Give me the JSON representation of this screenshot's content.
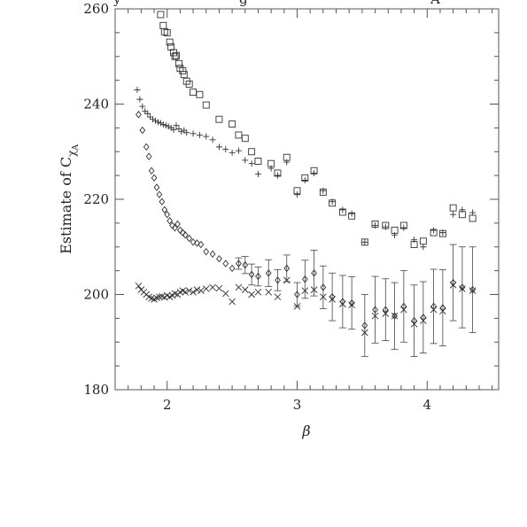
{
  "chart_data": {
    "type": "scatter",
    "title": "",
    "xlabel": "β",
    "ylabel_main": "Estimate of C",
    "ylabel_sub": "χ",
    "ylabel_subsub": "A",
    "xlim": [
      1.6,
      4.55
    ],
    "ylim": [
      180,
      260
    ],
    "x_ticks": [
      2,
      3,
      4
    ],
    "x_tick_labels": [
      "2",
      "3",
      "4"
    ],
    "y_ticks": [
      180,
      200,
      220,
      240,
      260
    ],
    "y_tick_labels": [
      "180",
      "200",
      "220",
      "240",
      "260"
    ],
    "grid": false,
    "series": [
      {
        "marker": "square",
        "points": [
          {
            "x": 1.95,
            "y": 258.8
          },
          {
            "x": 1.97,
            "y": 256.5
          },
          {
            "x": 1.98,
            "y": 255.2
          },
          {
            "x": 2.0,
            "y": 255.0
          },
          {
            "x": 2.02,
            "y": 253.0
          },
          {
            "x": 2.03,
            "y": 252.0
          },
          {
            "x": 2.05,
            "y": 250.8
          },
          {
            "x": 2.06,
            "y": 250.0
          },
          {
            "x": 2.07,
            "y": 250.2
          },
          {
            "x": 2.09,
            "y": 248.5
          },
          {
            "x": 2.1,
            "y": 247.5
          },
          {
            "x": 2.12,
            "y": 247.0
          },
          {
            "x": 2.13,
            "y": 246.2
          },
          {
            "x": 2.15,
            "y": 244.8
          },
          {
            "x": 2.17,
            "y": 244.2
          },
          {
            "x": 2.2,
            "y": 242.5
          },
          {
            "x": 2.25,
            "y": 242.0
          },
          {
            "x": 2.3,
            "y": 239.8
          },
          {
            "x": 2.4,
            "y": 236.8
          },
          {
            "x": 2.5,
            "y": 235.8
          },
          {
            "x": 2.55,
            "y": 233.5
          },
          {
            "x": 2.6,
            "y": 232.8
          },
          {
            "x": 2.65,
            "y": 230.0
          },
          {
            "x": 2.7,
            "y": 228.0
          },
          {
            "x": 2.8,
            "y": 227.5
          },
          {
            "x": 2.85,
            "y": 225.5
          },
          {
            "x": 2.92,
            "y": 228.8
          },
          {
            "x": 3.0,
            "y": 221.8
          },
          {
            "x": 3.06,
            "y": 224.5
          },
          {
            "x": 3.13,
            "y": 226.0
          },
          {
            "x": 3.2,
            "y": 221.5
          },
          {
            "x": 3.27,
            "y": 219.2
          },
          {
            "x": 3.35,
            "y": 217.3
          },
          {
            "x": 3.42,
            "y": 216.5
          },
          {
            "x": 3.52,
            "y": 211.0
          },
          {
            "x": 3.6,
            "y": 214.8
          },
          {
            "x": 3.68,
            "y": 214.5
          },
          {
            "x": 3.75,
            "y": 213.5
          },
          {
            "x": 3.82,
            "y": 214.5
          },
          {
            "x": 3.9,
            "y": 210.5
          },
          {
            "x": 3.97,
            "y": 211.2
          },
          {
            "x": 4.05,
            "y": 213.0
          },
          {
            "x": 4.12,
            "y": 212.8
          },
          {
            "x": 4.2,
            "y": 218.2
          },
          {
            "x": 4.27,
            "y": 216.8
          },
          {
            "x": 4.35,
            "y": 216.0
          }
        ]
      },
      {
        "marker": "plus",
        "points": [
          {
            "x": 1.77,
            "y": 243.0
          },
          {
            "x": 1.79,
            "y": 241.0
          },
          {
            "x": 1.81,
            "y": 239.5
          },
          {
            "x": 1.83,
            "y": 238.5
          },
          {
            "x": 1.85,
            "y": 238.0
          },
          {
            "x": 1.87,
            "y": 237.3
          },
          {
            "x": 1.89,
            "y": 236.8
          },
          {
            "x": 1.91,
            "y": 236.5
          },
          {
            "x": 1.93,
            "y": 236.2
          },
          {
            "x": 1.95,
            "y": 236.0
          },
          {
            "x": 1.97,
            "y": 235.7
          },
          {
            "x": 1.99,
            "y": 235.5
          },
          {
            "x": 2.01,
            "y": 235.3
          },
          {
            "x": 2.03,
            "y": 235.0
          },
          {
            "x": 2.05,
            "y": 234.6
          },
          {
            "x": 2.07,
            "y": 235.5
          },
          {
            "x": 2.09,
            "y": 234.8
          },
          {
            "x": 2.11,
            "y": 234.2
          },
          {
            "x": 2.13,
            "y": 234.5
          },
          {
            "x": 2.15,
            "y": 234.0
          },
          {
            "x": 2.2,
            "y": 233.8
          },
          {
            "x": 2.25,
            "y": 233.5
          },
          {
            "x": 2.3,
            "y": 233.2
          },
          {
            "x": 2.35,
            "y": 232.5
          },
          {
            "x": 2.4,
            "y": 231.0
          },
          {
            "x": 2.45,
            "y": 230.5
          },
          {
            "x": 2.5,
            "y": 229.8
          },
          {
            "x": 2.55,
            "y": 230.2
          },
          {
            "x": 2.6,
            "y": 228.2
          },
          {
            "x": 2.65,
            "y": 227.5
          },
          {
            "x": 2.7,
            "y": 225.3
          },
          {
            "x": 2.8,
            "y": 226.5
          },
          {
            "x": 2.85,
            "y": 225.0
          },
          {
            "x": 2.92,
            "y": 227.8
          },
          {
            "x": 3.0,
            "y": 221.0
          },
          {
            "x": 3.06,
            "y": 224.0
          },
          {
            "x": 3.13,
            "y": 225.5
          },
          {
            "x": 3.2,
            "y": 221.8
          },
          {
            "x": 3.27,
            "y": 219.5
          },
          {
            "x": 3.35,
            "y": 217.8
          },
          {
            "x": 3.42,
            "y": 217.0
          },
          {
            "x": 3.52,
            "y": 211.0
          },
          {
            "x": 3.6,
            "y": 214.5
          },
          {
            "x": 3.68,
            "y": 214.2
          },
          {
            "x": 3.75,
            "y": 212.5
          },
          {
            "x": 3.82,
            "y": 214.0
          },
          {
            "x": 3.9,
            "y": 211.5
          },
          {
            "x": 3.97,
            "y": 210.0
          },
          {
            "x": 4.05,
            "y": 213.5
          },
          {
            "x": 4.12,
            "y": 213.0
          },
          {
            "x": 4.2,
            "y": 216.8
          },
          {
            "x": 4.27,
            "y": 217.8
          },
          {
            "x": 4.35,
            "y": 217.2
          }
        ]
      },
      {
        "marker": "diamond",
        "points": [
          {
            "x": 1.78,
            "y": 237.8
          },
          {
            "x": 1.81,
            "y": 234.5
          },
          {
            "x": 1.84,
            "y": 231.0
          },
          {
            "x": 1.86,
            "y": 229.0
          },
          {
            "x": 1.88,
            "y": 226.0
          },
          {
            "x": 1.9,
            "y": 224.5
          },
          {
            "x": 1.92,
            "y": 222.5
          },
          {
            "x": 1.94,
            "y": 221.0
          },
          {
            "x": 1.96,
            "y": 219.5
          },
          {
            "x": 1.98,
            "y": 217.8
          },
          {
            "x": 2.0,
            "y": 216.8
          },
          {
            "x": 2.02,
            "y": 215.5
          },
          {
            "x": 2.04,
            "y": 214.5
          },
          {
            "x": 2.06,
            "y": 214.0
          },
          {
            "x": 2.08,
            "y": 214.8
          },
          {
            "x": 2.1,
            "y": 213.5
          },
          {
            "x": 2.12,
            "y": 213.0
          },
          {
            "x": 2.14,
            "y": 212.5
          },
          {
            "x": 2.17,
            "y": 211.8
          },
          {
            "x": 2.2,
            "y": 211.0
          },
          {
            "x": 2.23,
            "y": 210.8
          },
          {
            "x": 2.26,
            "y": 210.5
          },
          {
            "x": 2.3,
            "y": 209.0
          },
          {
            "x": 2.35,
            "y": 208.5
          },
          {
            "x": 2.4,
            "y": 207.5
          },
          {
            "x": 2.45,
            "y": 206.5
          },
          {
            "x": 2.5,
            "y": 205.5
          },
          {
            "x": 2.55,
            "y": 206.5,
            "err": 1.2
          },
          {
            "x": 2.6,
            "y": 206.2,
            "err": 1.8
          },
          {
            "x": 2.65,
            "y": 204.2,
            "err": 2.2
          },
          {
            "x": 2.7,
            "y": 203.8,
            "err": 2.0
          },
          {
            "x": 2.78,
            "y": 204.5,
            "err": 2.8
          },
          {
            "x": 2.85,
            "y": 203.0,
            "err": 2.2
          },
          {
            "x": 2.92,
            "y": 205.5,
            "err": 2.8
          },
          {
            "x": 3.0,
            "y": 200.0,
            "err": 2.5
          },
          {
            "x": 3.06,
            "y": 203.2,
            "err": 4.0
          },
          {
            "x": 3.13,
            "y": 204.5,
            "err": 4.8
          },
          {
            "x": 3.2,
            "y": 201.5,
            "err": 4.5
          },
          {
            "x": 3.27,
            "y": 199.5,
            "err": 5.0
          },
          {
            "x": 3.35,
            "y": 198.5,
            "err": 5.5
          },
          {
            "x": 3.42,
            "y": 198.2,
            "err": 5.5
          },
          {
            "x": 3.52,
            "y": 193.5,
            "err": 6.5
          },
          {
            "x": 3.6,
            "y": 196.8,
            "err": 7.0
          },
          {
            "x": 3.68,
            "y": 196.8,
            "err": 6.5
          },
          {
            "x": 3.75,
            "y": 195.5,
            "err": 7.0
          },
          {
            "x": 3.82,
            "y": 197.5,
            "err": 7.5
          },
          {
            "x": 3.9,
            "y": 194.5,
            "err": 7.5
          },
          {
            "x": 3.97,
            "y": 195.2,
            "err": 7.5
          },
          {
            "x": 4.05,
            "y": 197.5,
            "err": 7.8
          },
          {
            "x": 4.12,
            "y": 197.2,
            "err": 8.0
          },
          {
            "x": 4.2,
            "y": 202.5,
            "err": 8.0
          },
          {
            "x": 4.27,
            "y": 201.5,
            "err": 8.5
          },
          {
            "x": 4.35,
            "y": 201.0,
            "err": 9.0
          }
        ]
      },
      {
        "marker": "cross",
        "points": [
          {
            "x": 1.78,
            "y": 201.8
          },
          {
            "x": 1.8,
            "y": 201.0
          },
          {
            "x": 1.82,
            "y": 200.5
          },
          {
            "x": 1.84,
            "y": 200.0
          },
          {
            "x": 1.86,
            "y": 199.5
          },
          {
            "x": 1.88,
            "y": 199.2
          },
          {
            "x": 1.9,
            "y": 199.0
          },
          {
            "x": 1.92,
            "y": 199.3
          },
          {
            "x": 1.94,
            "y": 199.5
          },
          {
            "x": 1.96,
            "y": 199.6
          },
          {
            "x": 1.98,
            "y": 199.4
          },
          {
            "x": 2.0,
            "y": 199.8
          },
          {
            "x": 2.02,
            "y": 199.5
          },
          {
            "x": 2.04,
            "y": 199.8
          },
          {
            "x": 2.06,
            "y": 200.2
          },
          {
            "x": 2.08,
            "y": 200.0
          },
          {
            "x": 2.1,
            "y": 200.5
          },
          {
            "x": 2.12,
            "y": 200.8
          },
          {
            "x": 2.14,
            "y": 200.5
          },
          {
            "x": 2.17,
            "y": 200.8
          },
          {
            "x": 2.2,
            "y": 200.5
          },
          {
            "x": 2.23,
            "y": 201.0
          },
          {
            "x": 2.26,
            "y": 200.8
          },
          {
            "x": 2.3,
            "y": 201.2
          },
          {
            "x": 2.35,
            "y": 201.5
          },
          {
            "x": 2.4,
            "y": 201.3
          },
          {
            "x": 2.45,
            "y": 200.2
          },
          {
            "x": 2.5,
            "y": 198.5
          },
          {
            "x": 2.55,
            "y": 201.5
          },
          {
            "x": 2.6,
            "y": 201.0
          },
          {
            "x": 2.65,
            "y": 200.0
          },
          {
            "x": 2.7,
            "y": 200.5
          },
          {
            "x": 2.78,
            "y": 200.5
          },
          {
            "x": 2.85,
            "y": 199.5
          },
          {
            "x": 2.92,
            "y": 203.0
          },
          {
            "x": 3.0,
            "y": 197.5
          },
          {
            "x": 3.06,
            "y": 200.8
          },
          {
            "x": 3.13,
            "y": 201.0
          },
          {
            "x": 3.2,
            "y": 199.5
          },
          {
            "x": 3.27,
            "y": 199.0
          },
          {
            "x": 3.35,
            "y": 198.0
          },
          {
            "x": 3.42,
            "y": 197.8
          },
          {
            "x": 3.52,
            "y": 192.0
          },
          {
            "x": 3.6,
            "y": 195.5
          },
          {
            "x": 3.68,
            "y": 196.0
          },
          {
            "x": 3.75,
            "y": 195.5
          },
          {
            "x": 3.82,
            "y": 196.8
          },
          {
            "x": 3.9,
            "y": 193.8
          },
          {
            "x": 3.97,
            "y": 194.5
          },
          {
            "x": 4.05,
            "y": 196.8
          },
          {
            "x": 4.12,
            "y": 196.5
          },
          {
            "x": 4.2,
            "y": 202.0
          },
          {
            "x": 4.27,
            "y": 201.2
          },
          {
            "x": 4.35,
            "y": 200.8
          }
        ]
      }
    ]
  }
}
